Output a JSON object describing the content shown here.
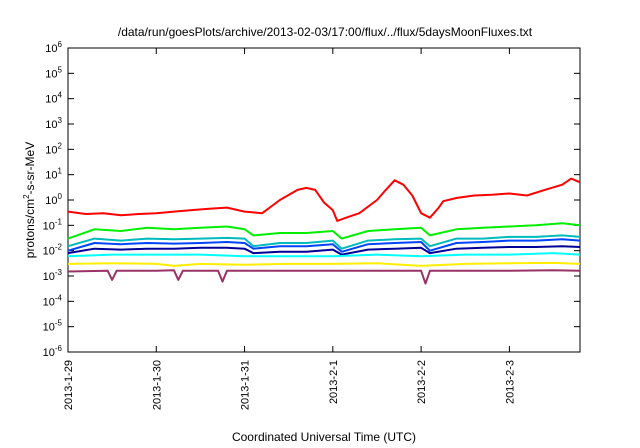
{
  "chart_data": {
    "type": "line",
    "title": "/data/run/goesPlots/archive/2013-02-03/17:00/flux/../flux/5daysMoonFluxes.txt",
    "xlabel": "Coordinated Universal Time (UTC)",
    "ylabel": "protons/cm2-s-sr-MeV",
    "ylabel_parts": {
      "pre": "protons/cm",
      "sup": "2",
      "post": "-s-sr-MeV"
    },
    "yscale": "log",
    "ylim": [
      1e-06,
      1000000.0
    ],
    "xlim": [
      0,
      5.8
    ],
    "x_tick_positions": [
      0,
      1,
      2,
      3,
      4,
      5
    ],
    "x_ticks": [
      "2013-1-29",
      "2013-1-30",
      "2013-1-31",
      "2013-2-1",
      "2013-2-2",
      "2013-2-3"
    ],
    "y_ticks": [
      {
        "base": "10",
        "exp": "-6",
        "value": -6
      },
      {
        "base": "10",
        "exp": "-5",
        "value": -5
      },
      {
        "base": "10",
        "exp": "-4",
        "value": -4
      },
      {
        "base": "10",
        "exp": "-3",
        "value": -3
      },
      {
        "base": "10",
        "exp": "-2",
        "value": -2
      },
      {
        "base": "10",
        "exp": "-1",
        "value": -1
      },
      {
        "base": "10",
        "exp": "0",
        "value": 0
      },
      {
        "base": "10",
        "exp": "1",
        "value": 1
      },
      {
        "base": "10",
        "exp": "2",
        "value": 2
      },
      {
        "base": "10",
        "exp": "3",
        "value": 3
      },
      {
        "base": "10",
        "exp": "4",
        "value": 4
      },
      {
        "base": "10",
        "exp": "5",
        "value": 5
      },
      {
        "base": "10",
        "exp": "6",
        "value": 6
      }
    ],
    "grid": false,
    "legend": "none",
    "series": [
      {
        "color": "#ff0000",
        "x": [
          0,
          0.2,
          0.4,
          0.6,
          0.8,
          1.0,
          1.2,
          1.4,
          1.6,
          1.8,
          2.0,
          2.2,
          2.4,
          2.6,
          2.7,
          2.8,
          2.9,
          3.0,
          3.05,
          3.15,
          3.3,
          3.5,
          3.6,
          3.7,
          3.8,
          3.9,
          4.0,
          4.1,
          4.2,
          4.25,
          4.4,
          4.6,
          4.8,
          5.0,
          5.2,
          5.4,
          5.6,
          5.7,
          5.8
        ],
        "values": [
          0.35,
          0.28,
          0.3,
          0.25,
          0.28,
          0.3,
          0.35,
          0.4,
          0.45,
          0.5,
          0.35,
          0.3,
          1.0,
          2.5,
          3.0,
          2.5,
          0.8,
          0.4,
          0.15,
          0.2,
          0.3,
          1.0,
          2.5,
          6.0,
          4.0,
          1.5,
          0.3,
          0.2,
          0.5,
          0.9,
          1.2,
          1.5,
          1.6,
          1.8,
          1.5,
          2.5,
          4.0,
          7.0,
          5.0
        ]
      },
      {
        "color": "#00ee00",
        "x": [
          0,
          0.3,
          0.6,
          0.9,
          1.2,
          1.5,
          1.8,
          2.0,
          2.1,
          2.4,
          2.7,
          3.0,
          3.1,
          3.4,
          3.7,
          4.0,
          4.1,
          4.4,
          4.7,
          5.0,
          5.3,
          5.6,
          5.8
        ],
        "values": [
          0.03,
          0.07,
          0.06,
          0.08,
          0.07,
          0.08,
          0.09,
          0.07,
          0.04,
          0.05,
          0.05,
          0.06,
          0.03,
          0.06,
          0.07,
          0.08,
          0.04,
          0.07,
          0.08,
          0.09,
          0.1,
          0.12,
          0.1
        ]
      },
      {
        "color": "#00bbbb",
        "x": [
          0,
          0.3,
          0.6,
          0.9,
          1.2,
          1.5,
          1.8,
          2.0,
          2.1,
          2.4,
          2.7,
          3.0,
          3.1,
          3.4,
          3.7,
          4.0,
          4.1,
          4.4,
          4.7,
          5.0,
          5.3,
          5.6,
          5.8
        ],
        "values": [
          0.015,
          0.03,
          0.025,
          0.03,
          0.028,
          0.03,
          0.032,
          0.03,
          0.015,
          0.02,
          0.02,
          0.025,
          0.012,
          0.025,
          0.028,
          0.03,
          0.015,
          0.03,
          0.03,
          0.035,
          0.035,
          0.04,
          0.035
        ]
      },
      {
        "color": "#0044ff",
        "x": [
          0,
          0.3,
          0.6,
          0.9,
          1.2,
          1.5,
          1.8,
          2.0,
          2.1,
          2.4,
          2.7,
          3.0,
          3.1,
          3.4,
          3.7,
          4.0,
          4.1,
          4.4,
          4.7,
          5.0,
          5.3,
          5.6,
          5.8
        ],
        "values": [
          0.01,
          0.02,
          0.018,
          0.02,
          0.019,
          0.02,
          0.022,
          0.02,
          0.012,
          0.015,
          0.015,
          0.018,
          0.009,
          0.018,
          0.02,
          0.022,
          0.01,
          0.02,
          0.022,
          0.025,
          0.025,
          0.028,
          0.025
        ]
      },
      {
        "color": "#000099",
        "x": [
          0,
          0.3,
          0.6,
          0.9,
          1.2,
          1.5,
          1.8,
          2.0,
          2.1,
          2.4,
          2.7,
          3.0,
          3.1,
          3.4,
          3.7,
          4.0,
          4.1,
          4.4,
          4.7,
          5.0,
          5.3,
          5.6,
          5.8
        ],
        "values": [
          0.008,
          0.012,
          0.011,
          0.012,
          0.012,
          0.013,
          0.013,
          0.012,
          0.008,
          0.009,
          0.009,
          0.011,
          0.007,
          0.011,
          0.012,
          0.013,
          0.008,
          0.012,
          0.013,
          0.014,
          0.014,
          0.015,
          0.014
        ]
      },
      {
        "color": "#00ffff",
        "x": [
          0,
          0.5,
          1.0,
          1.5,
          2.0,
          2.5,
          3.0,
          3.5,
          4.0,
          4.5,
          5.0,
          5.5,
          5.8
        ],
        "values": [
          0.006,
          0.007,
          0.007,
          0.007,
          0.006,
          0.006,
          0.006,
          0.007,
          0.006,
          0.007,
          0.007,
          0.008,
          0.007
        ]
      },
      {
        "color": "#ffee00",
        "x": [
          0,
          0.5,
          1.0,
          1.2,
          1.5,
          2.0,
          2.5,
          3.0,
          3.5,
          4.0,
          4.5,
          5.0,
          5.5,
          5.8
        ],
        "values": [
          0.003,
          0.0032,
          0.003,
          0.0025,
          0.003,
          0.0028,
          0.003,
          0.003,
          0.0032,
          0.0025,
          0.003,
          0.0032,
          0.0033,
          0.003
        ]
      },
      {
        "color": "#993366",
        "x": [
          0,
          0.45,
          0.5,
          0.55,
          1.0,
          1.2,
          1.25,
          1.3,
          1.7,
          1.75,
          1.8,
          2.0,
          2.5,
          3.0,
          3.5,
          4.0,
          4.05,
          4.1,
          4.5,
          5.0,
          5.5,
          5.8
        ],
        "values": [
          0.0015,
          0.0016,
          0.0007,
          0.0016,
          0.0016,
          0.0017,
          0.0007,
          0.0016,
          0.0016,
          0.0006,
          0.0016,
          0.0016,
          0.0016,
          0.0016,
          0.0016,
          0.0016,
          0.0005,
          0.0016,
          0.0016,
          0.0016,
          0.0017,
          0.0016
        ]
      }
    ]
  }
}
